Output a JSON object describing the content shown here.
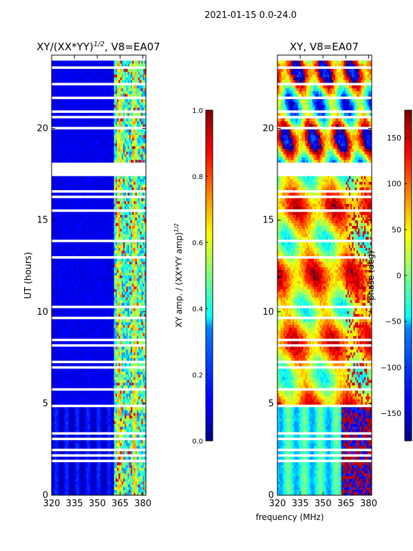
{
  "figure": {
    "suptitle": "2021-01-15 0.0-24.0",
    "shared_xlabel": "frequency (MHz)"
  },
  "chart_data": [
    {
      "type": "heatmap",
      "id": "amp",
      "title": "XY/(XX*YY)",
      "title_sup": "1/2",
      "title_suffix": ", V8=EA07",
      "xlabel": "",
      "ylabel": "UT (hours)",
      "xlim": [
        320,
        382
      ],
      "ylim": [
        0,
        24
      ],
      "xticks": [
        320,
        335,
        350,
        365,
        380
      ],
      "yticks": [
        0,
        5,
        10,
        15,
        20
      ],
      "colorbar": {
        "label": "XY amp. / (XX*YY amp)",
        "label_sup": "1/2",
        "range": [
          0.0,
          1.0
        ],
        "ticks": [
          "0.0",
          "0.2",
          "0.4",
          "0.6",
          "0.8",
          "1.0"
        ],
        "colormap": "jet"
      }
    },
    {
      "type": "heatmap",
      "id": "phase",
      "title": "XY, V8=EA07",
      "xlabel": "",
      "ylabel": "",
      "xlim": [
        320,
        382
      ],
      "ylim": [
        0,
        24
      ],
      "xticks": [
        320,
        335,
        350,
        365,
        380
      ],
      "yticks": [
        0,
        5,
        10,
        15,
        20
      ],
      "colorbar": {
        "label": "phase (deg)",
        "range": [
          -180,
          180
        ],
        "ticks": [
          "−150",
          "−100",
          "−50",
          "0",
          "50",
          "100",
          "150"
        ],
        "tick_values": [
          -150,
          -100,
          -50,
          0,
          50,
          100,
          150
        ],
        "colormap": "jet"
      }
    }
  ]
}
